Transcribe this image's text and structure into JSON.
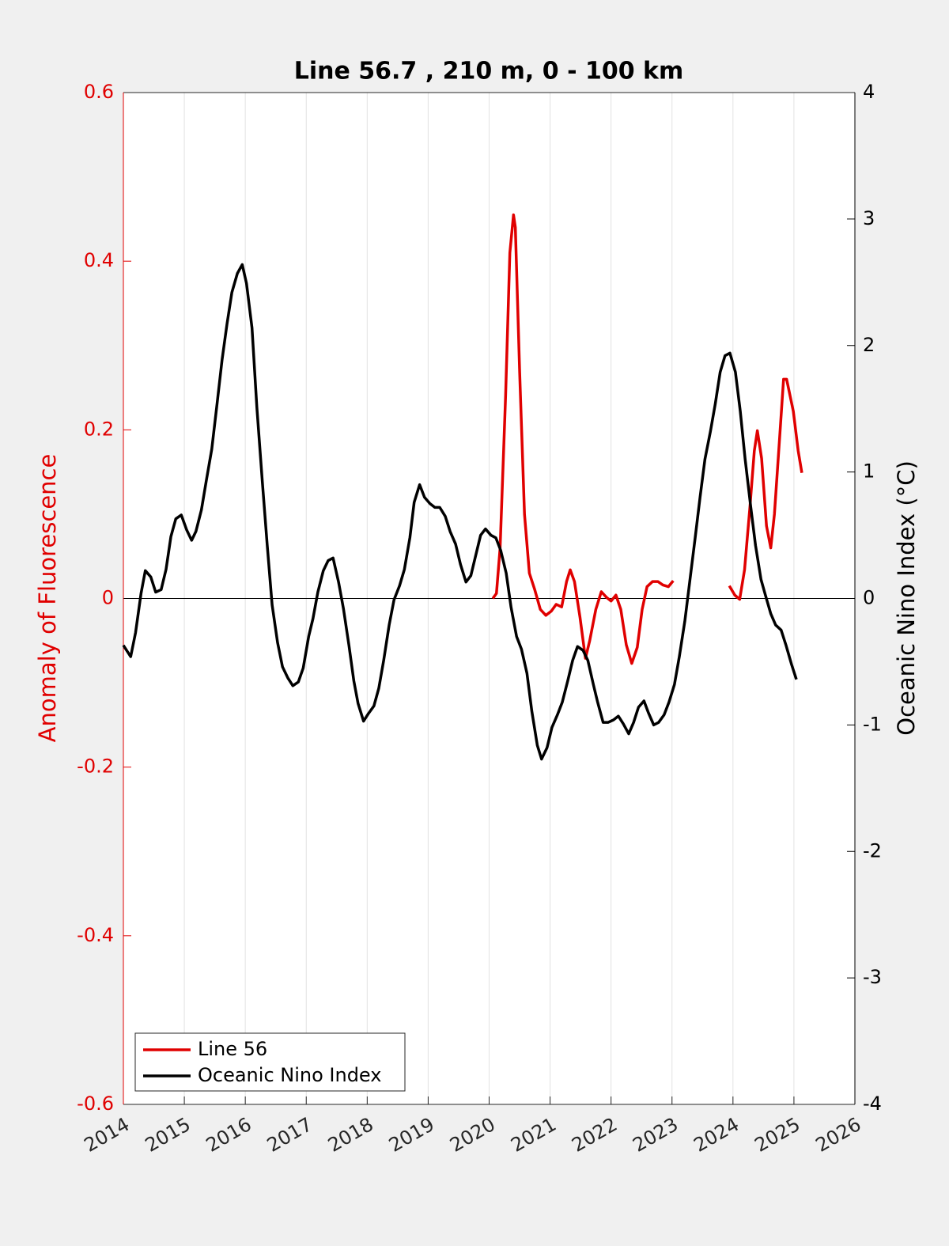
{
  "chart_data": {
    "type": "line",
    "title": "Line 56.7 , 210 m, 0 - 100 km",
    "ylabel": "Anomaly of Fluorescence",
    "y2label": "Oceanic Nino Index (°C)",
    "xlim": [
      2014,
      2026
    ],
    "xticks": [
      2014,
      2015,
      2016,
      2017,
      2018,
      2019,
      2020,
      2021,
      2022,
      2023,
      2024,
      2025,
      2026
    ],
    "ylim": [
      -0.6,
      0.6
    ],
    "yticks": [
      -0.6,
      -0.4,
      -0.2,
      0,
      0.2,
      0.4,
      0.6
    ],
    "y2lim": [
      -4,
      4
    ],
    "y2ticks": [
      -4,
      -3,
      -2,
      -1,
      0,
      1,
      2,
      3,
      4
    ],
    "ycolor": "#e00000",
    "y2color": "#000000",
    "grid": true,
    "legend": "southwest",
    "series": [
      {
        "name": "Line 56",
        "color": "#e00000",
        "x": [
          2020.06,
          2020.12,
          2020.18,
          2020.27,
          2020.34,
          2020.4,
          2020.43,
          2020.5,
          2020.58,
          2020.66,
          2020.75,
          2020.84,
          2020.93,
          2021.02,
          2021.1,
          2021.19,
          2021.27,
          2021.33,
          2021.4,
          2021.49,
          2021.58,
          2021.65,
          2021.75,
          2021.84,
          2021.93,
          2022.0,
          2022.08,
          2022.16,
          2022.25,
          2022.34,
          2022.43,
          2022.51,
          2022.59,
          2022.68,
          2022.77,
          2022.85,
          2022.94,
          2023.02,
          null,
          2023.94,
          2024.03,
          2024.11,
          2024.19,
          2024.28,
          2024.35,
          2024.4,
          2024.47,
          2024.55,
          2024.62,
          2024.68,
          2024.76,
          2024.83,
          2024.88,
          2024.99,
          2025.07,
          2025.13
        ],
        "values": [
          0.0,
          0.006,
          0.06,
          0.24,
          0.41,
          0.455,
          0.44,
          0.27,
          0.1,
          0.03,
          0.01,
          -0.013,
          -0.02,
          -0.015,
          -0.007,
          -0.01,
          0.02,
          0.034,
          0.02,
          -0.022,
          -0.071,
          -0.05,
          -0.013,
          0.008,
          0.001,
          -0.003,
          0.004,
          -0.013,
          -0.055,
          -0.077,
          -0.058,
          -0.013,
          0.014,
          0.02,
          0.02,
          0.016,
          0.014,
          0.021,
          null,
          0.015,
          0.004,
          -0.001,
          0.034,
          0.11,
          0.175,
          0.199,
          0.166,
          0.086,
          0.06,
          0.1,
          0.185,
          0.26,
          0.26,
          0.222,
          0.175,
          0.149
        ]
      },
      {
        "name": "Oceanic Nino Index",
        "color": "#000000",
        "axis": "y2",
        "x": [
          2014.0,
          2014.12,
          2014.2,
          2014.29,
          2014.36,
          2014.45,
          2014.53,
          2014.62,
          2014.7,
          2014.78,
          2014.86,
          2014.95,
          2015.04,
          2015.12,
          2015.19,
          2015.28,
          2015.36,
          2015.45,
          2015.53,
          2015.62,
          2015.7,
          2015.78,
          2015.87,
          2015.95,
          2016.02,
          2016.11,
          2016.19,
          2016.28,
          2016.36,
          2016.44,
          2016.53,
          2016.61,
          2016.7,
          2016.78,
          2016.87,
          2016.95,
          2017.04,
          2017.11,
          2017.19,
          2017.28,
          2017.36,
          2017.44,
          2017.53,
          2017.61,
          2017.7,
          2017.78,
          2017.85,
          2017.94,
          2018.02,
          2018.11,
          2018.19,
          2018.27,
          2018.36,
          2018.44,
          2018.53,
          2018.61,
          2018.7,
          2018.77,
          2018.86,
          2018.94,
          2019.03,
          2019.11,
          2019.19,
          2019.28,
          2019.36,
          2019.45,
          2019.53,
          2019.62,
          2019.7,
          2019.77,
          2019.86,
          2019.94,
          2020.03,
          2020.11,
          2020.19,
          2020.28,
          2020.36,
          2020.45,
          2020.53,
          2020.62,
          2020.7,
          2020.79,
          2020.86,
          2020.95,
          2021.03,
          2021.12,
          2021.2,
          2021.29,
          2021.37,
          2021.45,
          2021.54,
          2021.62,
          2021.71,
          2021.78,
          2021.87,
          2021.95,
          2022.04,
          2022.12,
          2022.2,
          2022.29,
          2022.37,
          2022.45,
          2022.54,
          2022.61,
          2022.7,
          2022.78,
          2022.87,
          2022.95,
          2023.04,
          2023.12,
          2023.21,
          2023.29,
          2023.38,
          2023.46,
          2023.54,
          2023.63,
          2023.71,
          2023.79,
          2023.87,
          2023.95,
          2024.04,
          2024.12,
          2024.2,
          2024.29,
          2024.37,
          2024.46,
          2024.53,
          2024.62,
          2024.7,
          2024.79,
          2024.87,
          2024.96,
          2025.04
        ],
        "values": [
          -0.37,
          -0.46,
          -0.27,
          0.04,
          0.22,
          0.17,
          0.05,
          0.07,
          0.23,
          0.49,
          0.63,
          0.66,
          0.54,
          0.46,
          0.53,
          0.7,
          0.93,
          1.18,
          1.51,
          1.89,
          2.17,
          2.42,
          2.57,
          2.64,
          2.49,
          2.14,
          1.51,
          0.92,
          0.42,
          -0.05,
          -0.35,
          -0.54,
          -0.63,
          -0.69,
          -0.66,
          -0.55,
          -0.3,
          -0.16,
          0.05,
          0.22,
          0.3,
          0.32,
          0.13,
          -0.08,
          -0.37,
          -0.65,
          -0.83,
          -0.97,
          -0.91,
          -0.85,
          -0.71,
          -0.49,
          -0.21,
          -0.01,
          0.1,
          0.23,
          0.48,
          0.76,
          0.9,
          0.8,
          0.75,
          0.72,
          0.72,
          0.65,
          0.53,
          0.43,
          0.27,
          0.13,
          0.18,
          0.32,
          0.5,
          0.55,
          0.5,
          0.48,
          0.38,
          0.2,
          -0.07,
          -0.3,
          -0.4,
          -0.59,
          -0.89,
          -1.16,
          -1.27,
          -1.18,
          -1.02,
          -0.92,
          -0.82,
          -0.65,
          -0.49,
          -0.38,
          -0.41,
          -0.49,
          -0.68,
          -0.82,
          -0.98,
          -0.98,
          -0.96,
          -0.93,
          -0.99,
          -1.07,
          -0.98,
          -0.86,
          -0.81,
          -0.9,
          -1.0,
          -0.98,
          -0.92,
          -0.82,
          -0.68,
          -0.46,
          -0.18,
          0.13,
          0.48,
          0.8,
          1.1,
          1.32,
          1.54,
          1.79,
          1.92,
          1.94,
          1.79,
          1.48,
          1.1,
          0.73,
          0.42,
          0.15,
          0.03,
          -0.12,
          -0.21,
          -0.25,
          -0.37,
          -0.52,
          -0.64
        ]
      }
    ]
  }
}
